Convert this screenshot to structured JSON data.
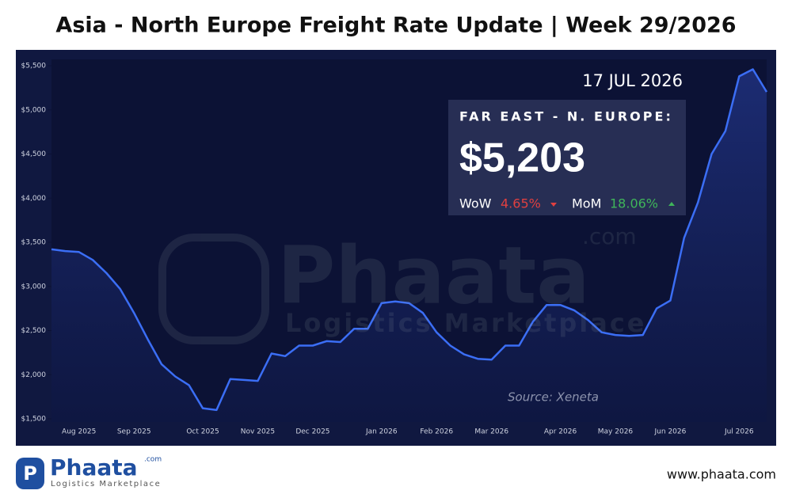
{
  "chart_data": {
    "type": "line",
    "title": "Asia - North Europe Freight Rate Update | Week 29/2026",
    "date": "17 JUL 2026",
    "source": "Source: Xeneta",
    "color": "#3b6ef5",
    "categories": [
      null,
      null,
      "Aug 2025",
      null,
      null,
      null,
      "Sep 2025",
      null,
      null,
      null,
      null,
      "Oct 2025",
      null,
      null,
      null,
      "Nov 2025",
      null,
      null,
      null,
      "Dec 2025",
      null,
      null,
      null,
      null,
      "Jan 2026",
      null,
      null,
      null,
      "Feb 2026",
      null,
      null,
      null,
      "Mar 2026",
      null,
      null,
      null,
      null,
      "Apr 2026",
      null,
      null,
      null,
      "May 2026",
      null,
      null,
      null,
      "Jun 2026",
      null,
      null,
      null,
      null,
      "Jul 2026",
      null,
      null
    ],
    "values": [
      3420,
      3400,
      3390,
      3300,
      3150,
      2970,
      2700,
      2400,
      2120,
      1980,
      1880,
      1620,
      1600,
      1950,
      1940,
      1930,
      2240,
      2210,
      2330,
      2330,
      2380,
      2370,
      2520,
      2520,
      2810,
      2830,
      2810,
      2700,
      2480,
      2330,
      2230,
      2180,
      2170,
      2330,
      2330,
      2600,
      2790,
      2790,
      2730,
      2620,
      2480,
      2450,
      2440,
      2450,
      2750,
      2840,
      3550,
      3950,
      4500,
      4760,
      5380,
      5460,
      5203
    ],
    "ylim": [
      1500,
      5500
    ],
    "yticks": [
      {
        "value": 1500,
        "label": "$1,500"
      },
      {
        "value": 2000,
        "label": "$2,000"
      },
      {
        "value": 2500,
        "label": "$2,500"
      },
      {
        "value": 3000,
        "label": "$3,000"
      },
      {
        "value": 3500,
        "label": "$3,500"
      },
      {
        "value": 4000,
        "label": "$4,000"
      },
      {
        "value": 4500,
        "label": "$4,500"
      },
      {
        "value": 5000,
        "label": "$5,000"
      },
      {
        "value": 5500,
        "label": "$5,500"
      }
    ]
  },
  "panel": {
    "label": "FAR EAST - N. EUROPE:",
    "price": "$5,203",
    "wow_label": "WoW",
    "wow": "4.65%",
    "mom_label": "MoM",
    "mom": "18.06%"
  },
  "branding": {
    "watermark": "Phaata",
    "watermark_com": ".com",
    "watermark_sub": "Logistics Marketplace",
    "logo": "Phaata",
    "logo_com": ".com",
    "logo_sub": "Logistics Marketplace",
    "website": "www.phaata.com"
  }
}
